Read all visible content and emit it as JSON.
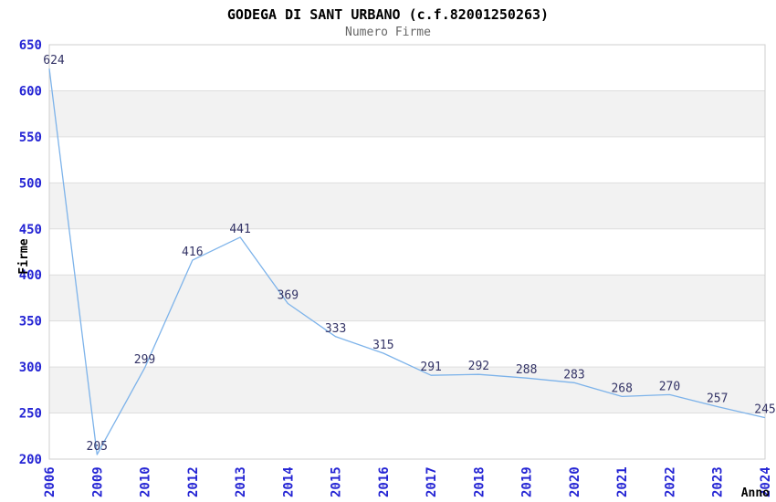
{
  "header": {
    "title": "GODEGA DI SANT URBANO (c.f.82001250263)",
    "subtitle": "Numero Firme"
  },
  "chart_data": {
    "type": "line",
    "title": "GODEGA DI SANT URBANO (c.f.82001250263)",
    "subtitle": "Numero Firme",
    "xlabel": "Anno",
    "ylabel": "Firme",
    "categories": [
      "2006",
      "2009",
      "2010",
      "2012",
      "2013",
      "2014",
      "2015",
      "2016",
      "2017",
      "2018",
      "2019",
      "2020",
      "2021",
      "2022",
      "2023",
      "2024"
    ],
    "values": [
      624,
      205,
      299,
      416,
      441,
      369,
      333,
      315,
      291,
      292,
      288,
      283,
      268,
      270,
      257,
      245
    ],
    "ylim": [
      200,
      650
    ],
    "ytick_step": 50,
    "grid": "horizontal-bands",
    "legend": "none",
    "show_point_labels": true,
    "colors": {
      "line": "#7db3ea",
      "tick_label": "#2424d4",
      "data_label": "#333366",
      "band": "#f2f2f2",
      "gridline": "#dedede",
      "plot_border": "#cfcfcf",
      "axis_title": "#000000",
      "title": "#000000",
      "subtitle": "#666666",
      "background": "#ffffff"
    }
  }
}
